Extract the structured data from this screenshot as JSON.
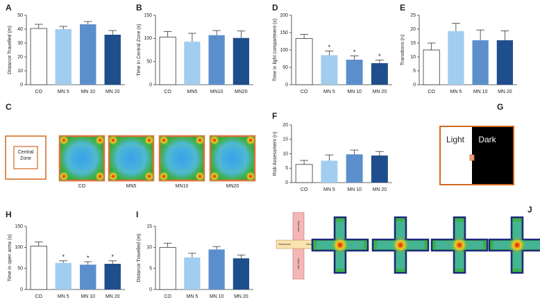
{
  "chart_data": [
    {
      "type": "bar",
      "panel": "A",
      "ylabel": "Distance Travelled (m)",
      "categories": [
        "CO",
        "MN 5",
        "MN 10",
        "MN 20"
      ],
      "values": [
        40.5,
        40,
        43.5,
        36
      ],
      "errors": [
        3,
        2,
        2,
        3
      ],
      "colors": [
        "#ffffff",
        "#a3cdee",
        "#5b8fcc",
        "#1f4e8c"
      ],
      "ylim": [
        0,
        50
      ],
      "yticks": [
        0,
        10,
        20,
        30,
        40,
        50
      ]
    },
    {
      "type": "bar",
      "panel": "B",
      "ylabel": "Time in Central Zone (s)",
      "categories": [
        "CO",
        "MN5",
        "MN10",
        "MN20"
      ],
      "values": [
        103,
        93,
        107,
        101
      ],
      "errors": [
        12,
        18,
        10,
        15
      ],
      "colors": [
        "#ffffff",
        "#a3cdee",
        "#5b8fcc",
        "#1f4e8c"
      ],
      "ylim": [
        0,
        150
      ],
      "yticks": [
        0,
        50,
        100,
        150
      ]
    },
    {
      "type": "bar",
      "panel": "D",
      "ylabel": "Time in light compartment (s)",
      "categories": [
        "CO",
        "MN 5",
        "MN 10",
        "MN 20"
      ],
      "values": [
        133,
        85,
        72,
        62
      ],
      "errors": [
        12,
        12,
        11,
        9
      ],
      "markers": [
        null,
        "*",
        "*",
        "*"
      ],
      "colors": [
        "#ffffff",
        "#a3cdee",
        "#5b8fcc",
        "#1f4e8c"
      ],
      "ylim": [
        0,
        200
      ],
      "yticks": [
        0,
        50,
        100,
        150,
        200
      ]
    },
    {
      "type": "bar",
      "panel": "E",
      "ylabel": "Transitions (n)",
      "categories": [
        "CO",
        "MN 5",
        "MN 10",
        "MN 20"
      ],
      "values": [
        12.5,
        19.3,
        16,
        16
      ],
      "errors": [
        2.5,
        2.8,
        3.7,
        3.4
      ],
      "colors": [
        "#ffffff",
        "#a3cdee",
        "#5b8fcc",
        "#1f4e8c"
      ],
      "ylim": [
        0,
        25
      ],
      "yticks": [
        0,
        5,
        10,
        15,
        20,
        25
      ]
    },
    {
      "type": "bar",
      "panel": "F",
      "ylabel": "Risk Assessment (n)",
      "categories": [
        "CO",
        "MN 5",
        "MN 10",
        "MN 20"
      ],
      "values": [
        6.3,
        7.6,
        9.8,
        9.4
      ],
      "errors": [
        1.4,
        2,
        1.5,
        1.4
      ],
      "colors": [
        "#ffffff",
        "#a3cdee",
        "#5b8fcc",
        "#1f4e8c"
      ],
      "ylim": [
        0,
        20
      ],
      "yticks": [
        0,
        5,
        10,
        15,
        20
      ]
    },
    {
      "type": "bar",
      "panel": "H",
      "ylabel": "Time in open arms (s)",
      "categories": [
        "CO",
        "MN 5",
        "MN 10",
        "MN 20"
      ],
      "values": [
        103,
        63,
        59,
        61
      ],
      "errors": [
        10,
        5,
        7,
        7
      ],
      "markers": [
        null,
        "*",
        "*",
        "*"
      ],
      "colors": [
        "#ffffff",
        "#a3cdee",
        "#5b8fcc",
        "#1f4e8c"
      ],
      "ylim": [
        0,
        150
      ],
      "yticks": [
        0,
        50,
        100,
        150
      ]
    },
    {
      "type": "bar",
      "panel": "I",
      "ylabel": "Distance Travelled (m)",
      "categories": [
        "CO",
        "MN 5",
        "MN 10",
        "MN 20"
      ],
      "values": [
        10,
        7.6,
        9.5,
        7.4
      ],
      "errors": [
        1,
        1,
        0.7,
        0.8
      ],
      "colors": [
        "#ffffff",
        "#a3cdee",
        "#5b8fcc",
        "#1f4e8c"
      ],
      "ylim": [
        0,
        15
      ],
      "yticks": [
        0,
        5,
        10,
        15
      ]
    }
  ],
  "panels": {
    "C": {
      "label": "C",
      "diagram": "Central Zone",
      "groups": [
        "CO",
        "MN5",
        "MN10",
        "MN20"
      ]
    },
    "G": {
      "label": "G",
      "light": "Light",
      "dark": "Dark"
    },
    "J": {
      "label": "J",
      "closed_arm": "Closed arm",
      "open_arm": "Open arm"
    }
  }
}
